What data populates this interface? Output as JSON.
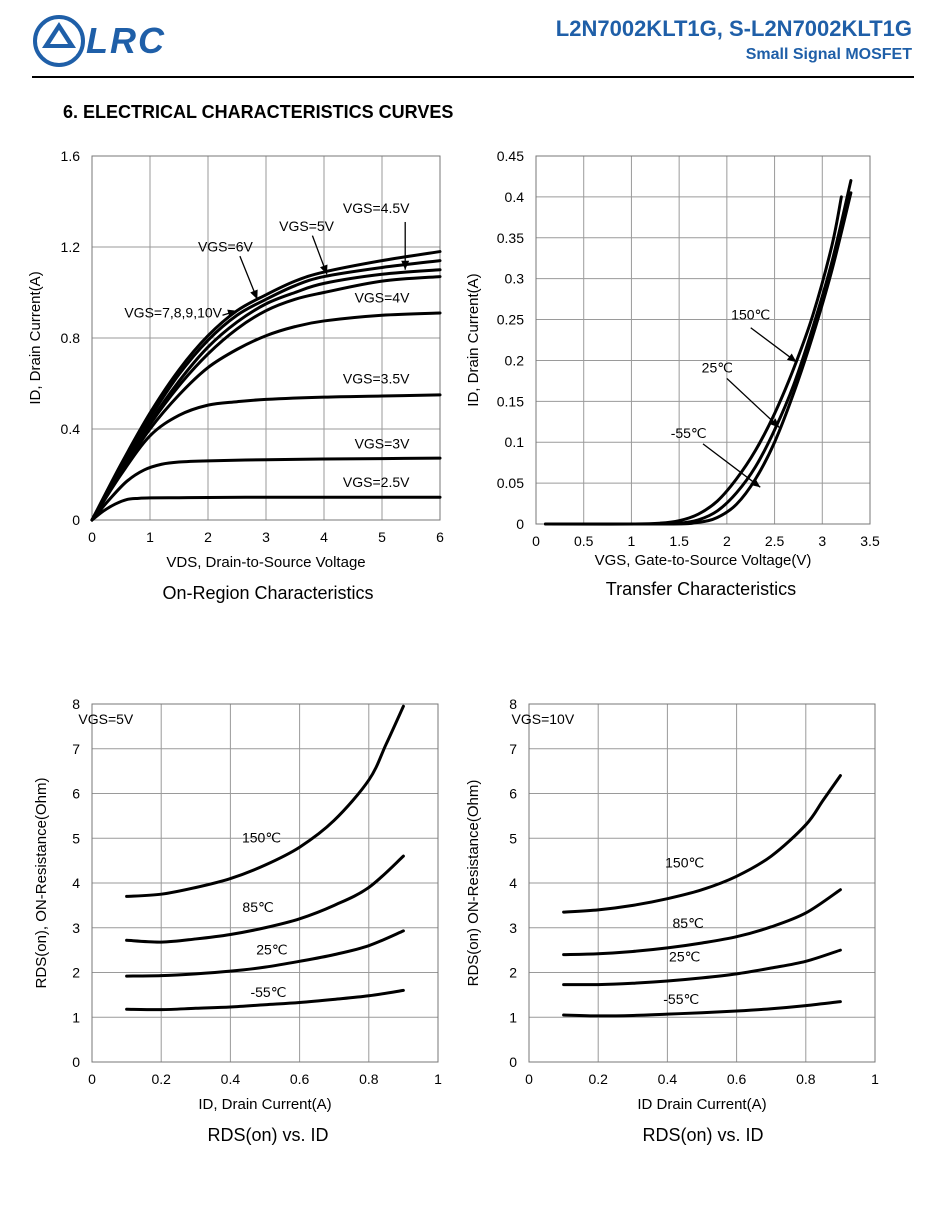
{
  "header": {
    "logo_text": "LRC",
    "part_number": "L2N7002KLT1G, S-L2N7002KLT1G",
    "subtitle": "Small Signal MOSFET",
    "brand_color": "#1f5fa8"
  },
  "section_title": "6. ELECTRICAL CHARACTERISTICS CURVES",
  "chart_data": [
    {
      "type": "line",
      "id": "on-region",
      "caption": "On-Region Characteristics",
      "xlabel": "VDS, Drain-to-Source Voltage",
      "ylabel": "ID, Drain Current(A)",
      "xlim": [
        0,
        6
      ],
      "ylim": [
        0,
        1.6
      ],
      "xticks": [
        0,
        1,
        2,
        3,
        4,
        5,
        6
      ],
      "yticks": [
        0,
        0.4,
        0.8,
        1.2,
        1.6
      ],
      "xtick_labels": [
        "0",
        "1",
        "2",
        "3",
        "4",
        "5",
        "6"
      ],
      "ytick_labels": [
        "0",
        "0.4",
        "0.8",
        "1.2",
        "1.6"
      ],
      "grid": true,
      "series": [
        {
          "name": "VGS=2.5V",
          "x": [
            0,
            0.2,
            0.4,
            0.6,
            0.8,
            1.0,
            1.5,
            2,
            3,
            4,
            5,
            6
          ],
          "y": [
            0,
            0.04,
            0.07,
            0.09,
            0.095,
            0.097,
            0.098,
            0.099,
            0.1,
            0.1,
            0.1,
            0.1
          ]
        },
        {
          "name": "VGS=3V",
          "x": [
            0,
            0.3,
            0.6,
            0.9,
            1.2,
            1.5,
            2,
            3,
            4,
            5,
            6
          ],
          "y": [
            0,
            0.09,
            0.17,
            0.22,
            0.245,
            0.255,
            0.26,
            0.265,
            0.268,
            0.27,
            0.272
          ]
        },
        {
          "name": "VGS=3.5V",
          "x": [
            0,
            0.5,
            1.0,
            1.5,
            2,
            2.5,
            3,
            4,
            5,
            6
          ],
          "y": [
            0,
            0.2,
            0.37,
            0.46,
            0.505,
            0.52,
            0.53,
            0.54,
            0.545,
            0.55
          ]
        },
        {
          "name": "VGS=4V",
          "x": [
            0,
            0.5,
            1,
            1.5,
            2,
            2.5,
            3,
            3.5,
            4,
            5,
            6
          ],
          "y": [
            0,
            0.21,
            0.4,
            0.55,
            0.67,
            0.75,
            0.81,
            0.85,
            0.875,
            0.9,
            0.91
          ]
        },
        {
          "name": "VGS=4.5V",
          "x": [
            0,
            0.5,
            1,
            1.5,
            2,
            2.5,
            3,
            3.5,
            4,
            5,
            6
          ],
          "y": [
            0,
            0.22,
            0.42,
            0.59,
            0.73,
            0.84,
            0.92,
            0.97,
            1.0,
            1.05,
            1.07
          ]
        },
        {
          "name": "VGS=5V",
          "x": [
            0,
            0.5,
            1,
            1.5,
            2,
            2.5,
            3,
            3.5,
            4,
            5,
            6
          ],
          "y": [
            0,
            0.225,
            0.43,
            0.61,
            0.76,
            0.87,
            0.95,
            1.0,
            1.04,
            1.08,
            1.1
          ]
        },
        {
          "name": "VGS=6V",
          "x": [
            0,
            0.5,
            1,
            1.5,
            2,
            2.5,
            3,
            3.5,
            4,
            5,
            6
          ],
          "y": [
            0,
            0.235,
            0.45,
            0.64,
            0.79,
            0.9,
            0.97,
            1.03,
            1.07,
            1.11,
            1.14
          ]
        },
        {
          "name": "VGS=7,8,9,10V",
          "x": [
            0,
            0.5,
            1,
            1.5,
            2,
            2.5,
            3,
            3.5,
            4,
            5,
            6
          ],
          "y": [
            0,
            0.245,
            0.47,
            0.66,
            0.81,
            0.92,
            0.99,
            1.05,
            1.09,
            1.14,
            1.18
          ]
        }
      ],
      "annotations": [
        {
          "text": "VGS=2.5V",
          "x": 4.9,
          "y": 0.145
        },
        {
          "text": "VGS=3V",
          "x": 5.0,
          "y": 0.315
        },
        {
          "text": "VGS=3.5V",
          "x": 4.9,
          "y": 0.6
        },
        {
          "text": "VGS=4V",
          "x": 5.0,
          "y": 0.955
        },
        {
          "text": "VGS=4.5V",
          "x": 4.9,
          "y": 1.35
        },
        {
          "text": "VGS=5V",
          "x": 3.7,
          "y": 1.27
        },
        {
          "text": "VGS=6V",
          "x": 2.3,
          "y": 1.18
        },
        {
          "text": "VGS=7,8,9,10V",
          "x": 1.4,
          "y": 0.89
        }
      ]
    },
    {
      "type": "line",
      "id": "transfer",
      "caption": "Transfer Characteristics",
      "xlabel": "VGS, Gate-to-Source Voltage(V)",
      "ylabel": "ID, Drain Current(A)",
      "xlim": [
        0,
        3.5
      ],
      "ylim": [
        0,
        0.45
      ],
      "xticks": [
        0,
        0.5,
        1,
        1.5,
        2,
        2.5,
        3,
        3.5
      ],
      "yticks": [
        0,
        0.05,
        0.1,
        0.15,
        0.2,
        0.25,
        0.3,
        0.35,
        0.4,
        0.45
      ],
      "xtick_labels": [
        "0",
        "0.5",
        "1",
        "1.5",
        "2",
        "2.5",
        "3",
        "3.5"
      ],
      "ytick_labels": [
        "0",
        "0.05",
        "0.1",
        "0.15",
        "0.2",
        "0.25",
        "0.3",
        "0.35",
        "0.4",
        "0.45"
      ],
      "grid": true,
      "series": [
        {
          "name": "150℃",
          "x": [
            0.1,
            1.0,
            1.3,
            1.5,
            1.7,
            1.9,
            2.1,
            2.3,
            2.5,
            2.7,
            2.9,
            3.1,
            3.2
          ],
          "y": [
            0,
            0,
            0.001,
            0.004,
            0.012,
            0.028,
            0.055,
            0.09,
            0.135,
            0.19,
            0.255,
            0.34,
            0.4
          ]
        },
        {
          "name": "25℃",
          "x": [
            0.1,
            1.2,
            1.5,
            1.7,
            1.9,
            2.1,
            2.3,
            2.5,
            2.7,
            2.9,
            3.1,
            3.3
          ],
          "y": [
            0,
            0,
            0.001,
            0.005,
            0.016,
            0.038,
            0.07,
            0.115,
            0.17,
            0.24,
            0.32,
            0.42
          ]
        },
        {
          "name": "-55℃",
          "x": [
            0.1,
            1.4,
            1.7,
            1.9,
            2.1,
            2.3,
            2.5,
            2.7,
            2.9,
            3.1,
            3.3
          ],
          "y": [
            0,
            0,
            0.002,
            0.008,
            0.024,
            0.055,
            0.1,
            0.16,
            0.23,
            0.31,
            0.405
          ]
        }
      ],
      "annotations": [
        {
          "text": "150℃",
          "x": 2.25,
          "y": 0.25
        },
        {
          "text": "25℃",
          "x": 1.9,
          "y": 0.185
        },
        {
          "text": "-55℃",
          "x": 1.6,
          "y": 0.105
        }
      ]
    },
    {
      "type": "line",
      "id": "rds-vgs5",
      "caption": "RDS(on) vs.  ID",
      "xlabel": "ID, Drain Current(A)",
      "ylabel": "RDS(on), ON-Resistance(Ohm)",
      "xlim": [
        0,
        1
      ],
      "ylim": [
        0,
        8
      ],
      "xticks": [
        0,
        0.2,
        0.4,
        0.6,
        0.8,
        1
      ],
      "yticks": [
        0,
        1,
        2,
        3,
        4,
        5,
        6,
        7,
        8
      ],
      "xtick_labels": [
        "0",
        "0.2",
        "0.4",
        "0.6",
        "0.8",
        "1"
      ],
      "ytick_labels": [
        "0",
        "1",
        "2",
        "3",
        "4",
        "5",
        "6",
        "7",
        "8"
      ],
      "grid": true,
      "series": [
        {
          "name": "150℃",
          "x": [
            0.1,
            0.2,
            0.3,
            0.4,
            0.5,
            0.6,
            0.7,
            0.8,
            0.85,
            0.9
          ],
          "y": [
            3.7,
            3.75,
            3.9,
            4.1,
            4.4,
            4.8,
            5.4,
            6.3,
            7.1,
            7.95
          ]
        },
        {
          "name": "85℃",
          "x": [
            0.1,
            0.2,
            0.3,
            0.4,
            0.5,
            0.6,
            0.7,
            0.8,
            0.9
          ],
          "y": [
            2.72,
            2.68,
            2.75,
            2.85,
            3.0,
            3.2,
            3.5,
            3.9,
            4.6
          ]
        },
        {
          "name": "25℃",
          "x": [
            0.1,
            0.2,
            0.3,
            0.4,
            0.5,
            0.6,
            0.7,
            0.8,
            0.9
          ],
          "y": [
            1.92,
            1.93,
            1.97,
            2.03,
            2.12,
            2.25,
            2.4,
            2.6,
            2.93
          ]
        },
        {
          "name": "-55℃",
          "x": [
            0.1,
            0.2,
            0.3,
            0.4,
            0.5,
            0.6,
            0.7,
            0.8,
            0.9
          ],
          "y": [
            1.18,
            1.17,
            1.2,
            1.23,
            1.28,
            1.33,
            1.4,
            1.48,
            1.6
          ]
        }
      ],
      "annotations": [
        {
          "text": "VGS=5V",
          "x": 0.04,
          "y": 7.55
        },
        {
          "text": "150℃",
          "x": 0.49,
          "y": 4.9
        },
        {
          "text": "85℃",
          "x": 0.48,
          "y": 3.35
        },
        {
          "text": "25℃",
          "x": 0.52,
          "y": 2.4
        },
        {
          "text": "-55℃",
          "x": 0.51,
          "y": 1.45
        }
      ]
    },
    {
      "type": "line",
      "id": "rds-vgs10",
      "caption": "RDS(on) vs.  ID",
      "xlabel": "ID Drain Current(A)",
      "ylabel": "RDS(on) ON-Resistance(Ohm)",
      "xlim": [
        0,
        1
      ],
      "ylim": [
        0,
        8
      ],
      "xticks": [
        0,
        0.2,
        0.4,
        0.6,
        0.8,
        1
      ],
      "yticks": [
        0,
        1,
        2,
        3,
        4,
        5,
        6,
        7,
        8
      ],
      "xtick_labels": [
        "0",
        "0.2",
        "0.4",
        "0.6",
        "0.8",
        "1"
      ],
      "ytick_labels": [
        "0",
        "1",
        "2",
        "3",
        "4",
        "5",
        "6",
        "7",
        "8"
      ],
      "grid": true,
      "series": [
        {
          "name": "150℃",
          "x": [
            0.1,
            0.2,
            0.3,
            0.4,
            0.5,
            0.6,
            0.7,
            0.8,
            0.85,
            0.9
          ],
          "y": [
            3.35,
            3.4,
            3.5,
            3.65,
            3.85,
            4.15,
            4.6,
            5.3,
            5.85,
            6.4
          ]
        },
        {
          "name": "85℃",
          "x": [
            0.1,
            0.2,
            0.3,
            0.4,
            0.5,
            0.6,
            0.7,
            0.8,
            0.9
          ],
          "y": [
            2.4,
            2.42,
            2.47,
            2.55,
            2.66,
            2.8,
            3.02,
            3.33,
            3.85
          ]
        },
        {
          "name": "25℃",
          "x": [
            0.1,
            0.2,
            0.3,
            0.4,
            0.5,
            0.6,
            0.7,
            0.8,
            0.9
          ],
          "y": [
            1.73,
            1.73,
            1.76,
            1.81,
            1.88,
            1.97,
            2.1,
            2.25,
            2.5
          ]
        },
        {
          "name": "-55℃",
          "x": [
            0.1,
            0.2,
            0.3,
            0.4,
            0.5,
            0.6,
            0.7,
            0.8,
            0.9
          ],
          "y": [
            1.05,
            1.03,
            1.04,
            1.07,
            1.1,
            1.14,
            1.19,
            1.26,
            1.35
          ]
        }
      ],
      "annotations": [
        {
          "text": "VGS=10V",
          "x": 0.04,
          "y": 7.55
        },
        {
          "text": "150℃",
          "x": 0.45,
          "y": 4.35
        },
        {
          "text": "85℃",
          "x": 0.46,
          "y": 3.0
        },
        {
          "text": "25℃",
          "x": 0.45,
          "y": 2.25
        },
        {
          "text": "-55℃",
          "x": 0.44,
          "y": 1.3
        }
      ]
    }
  ]
}
